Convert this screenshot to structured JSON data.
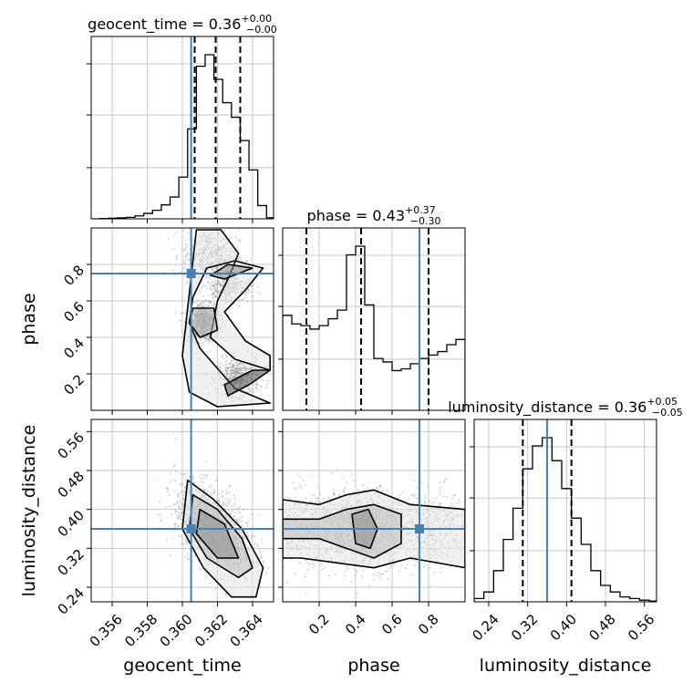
{
  "colors": {
    "truth": "#4682b4",
    "hist": "#000000",
    "grid": "#c8c8c8",
    "scatter": "#9a9a9a"
  },
  "chart_data": {
    "type": "corner",
    "parameters": [
      "geocent_time",
      "phase",
      "luminosity_distance"
    ],
    "truths": {
      "geocent_time": 0.3605,
      "phase": 0.75,
      "luminosity_distance": 0.36
    },
    "ranges": {
      "geocent_time": [
        0.3548,
        0.3652
      ],
      "phase": [
        0.0,
        1.0
      ],
      "luminosity_distance": [
        0.21,
        0.585
      ]
    },
    "ticks": {
      "geocent_time": [
        0.356,
        0.358,
        0.36,
        0.362,
        0.364
      ],
      "phase": [
        0.2,
        0.4,
        0.6,
        0.8
      ],
      "luminosity_distance": [
        0.24,
        0.32,
        0.4,
        0.48,
        0.56
      ]
    },
    "tick_labels": {
      "geocent_time": [
        "0.356",
        "0.358",
        "0.360",
        "0.362",
        "0.364"
      ],
      "phase": [
        "0.2",
        "0.4",
        "0.6",
        "0.8"
      ],
      "luminosity_distance": [
        "0.24",
        "0.32",
        "0.40",
        "0.48",
        "0.56"
      ]
    },
    "titles": [
      {
        "name": "geocent_time",
        "value": "0.36",
        "plus": "+0.00",
        "minus": "−0.00"
      },
      {
        "name": "phase",
        "value": "0.43",
        "plus": "+0.37",
        "minus": "−0.30"
      },
      {
        "name": "luminosity_distance",
        "value": "0.36",
        "plus": "+0.05",
        "minus": "−0.05"
      }
    ],
    "quantiles": {
      "geocent_time": [
        0.3607,
        0.3619,
        0.3633
      ],
      "phase": [
        0.13,
        0.43,
        0.8
      ],
      "luminosity_distance": [
        0.31,
        0.36,
        0.41
      ]
    },
    "histograms": {
      "geocent_time": {
        "edges": [
          0.3548,
          0.3553,
          0.3558,
          0.3563,
          0.3568,
          0.3573,
          0.3578,
          0.3583,
          0.3588,
          0.3593,
          0.3598,
          0.3603,
          0.3608,
          0.3613,
          0.3618,
          0.3623,
          0.3628,
          0.3633,
          0.3638,
          0.3643,
          0.3648,
          0.3652
        ],
        "counts": [
          0,
          2,
          4,
          6,
          9,
          18,
          33,
          52,
          85,
          133,
          254,
          548,
          930,
          1000,
          850,
          708,
          619,
          477,
          298,
          81,
          7
        ]
      },
      "phase": {
        "edges": [
          0.0,
          0.05,
          0.1,
          0.15,
          0.2,
          0.25,
          0.3,
          0.35,
          0.4,
          0.45,
          0.5,
          0.55,
          0.6,
          0.65,
          0.7,
          0.75,
          0.8,
          0.85,
          0.9,
          0.95,
          1.0
        ],
        "counts": [
          550,
          500,
          490,
          470,
          490,
          530,
          580,
          900,
          950,
          610,
          300,
          280,
          230,
          240,
          270,
          300,
          320,
          340,
          380,
          410
        ]
      },
      "luminosity_distance": {
        "edges": [
          0.21,
          0.23,
          0.25,
          0.27,
          0.29,
          0.31,
          0.33,
          0.35,
          0.37,
          0.39,
          0.41,
          0.43,
          0.45,
          0.47,
          0.49,
          0.51,
          0.53,
          0.55,
          0.57,
          0.59
        ],
        "counts": [
          20,
          60,
          190,
          380,
          570,
          810,
          950,
          1000,
          860,
          690,
          510,
          350,
          190,
          100,
          60,
          30,
          20,
          10,
          5
        ]
      }
    }
  }
}
